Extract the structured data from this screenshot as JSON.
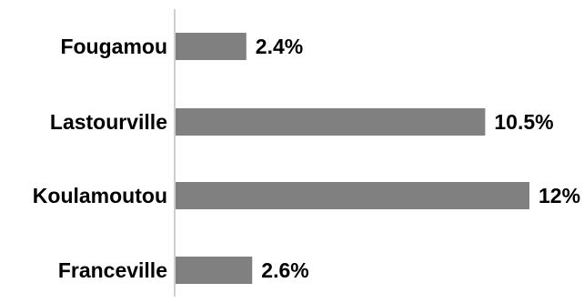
{
  "chart_data": {
    "type": "bar",
    "orientation": "horizontal",
    "categories": [
      "Fougamou",
      "Lastourville",
      "Koulamoutou",
      "Franceville"
    ],
    "values": [
      2.4,
      10.5,
      12,
      2.6
    ],
    "value_labels": [
      "2.4%",
      "10.5%",
      "12%",
      "2.6%"
    ],
    "value_unit": "%",
    "title": "",
    "xlabel": "",
    "ylabel": "",
    "xlim": [
      0,
      12
    ],
    "grid": false,
    "legend": "none",
    "bar_color": "#808080",
    "axis_color": "#bfbfbf"
  }
}
